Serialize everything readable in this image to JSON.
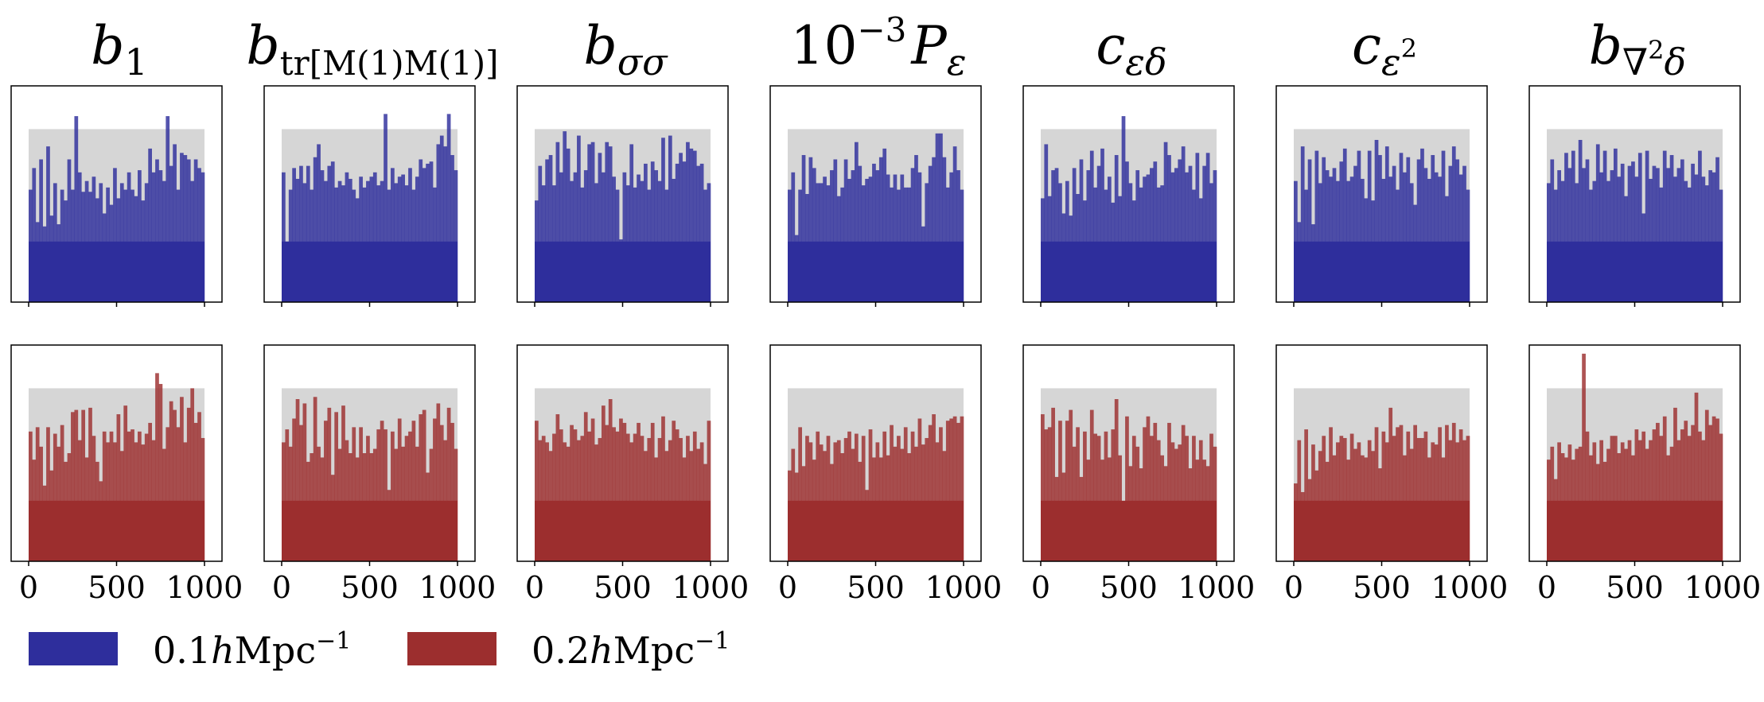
{
  "chart_data": {
    "type": "bar",
    "description_rows": [
      "0.1hMpc-1",
      "0.2hMpc-1"
    ],
    "xlim": [
      0,
      1000
    ],
    "xticks": [
      "0",
      "500",
      "1000"
    ],
    "n_bins": 50,
    "background_band": {
      "color": "#d6d6d6"
    },
    "colors": {
      "series_0.1": "#2e2e9c",
      "series_0.2": "#9c2e2e"
    },
    "panels": [
      {
        "title_parts": [
          "b",
          "1"
        ],
        "title": "b_1",
        "series": [
          {
            "name": "0.1hMpc-1",
            "base": 0.28,
            "values": [
              0.52,
              0.62,
              0.37,
              0.66,
              0.35,
              0.72,
              0.4,
              0.55,
              0.36,
              0.52,
              0.47,
              0.66,
              0.52,
              0.86,
              0.6,
              0.51,
              0.56,
              0.51,
              0.58,
              0.48,
              0.55,
              0.41,
              0.53,
              0.45,
              0.62,
              0.48,
              0.55,
              0.52,
              0.6,
              0.52,
              0.49,
              0.61,
              0.47,
              0.55,
              0.71,
              0.6,
              0.66,
              0.61,
              0.56,
              0.86,
              0.63,
              0.73,
              0.52,
              0.69,
              0.68,
              0.66,
              0.56,
              0.66,
              0.62,
              0.6
            ]
          },
          {
            "name": "0.2hMpc-1",
            "base": 0.28,
            "values": [
              0.6,
              0.47,
              0.62,
              0.53,
              0.35,
              0.62,
              0.42,
              0.59,
              0.53,
              0.63,
              0.46,
              0.5,
              0.69,
              0.7,
              0.56,
              0.7,
              0.48,
              0.71,
              0.58,
              0.46,
              0.37,
              0.6,
              0.55,
              0.6,
              0.55,
              0.68,
              0.51,
              0.72,
              0.6,
              0.61,
              0.55,
              0.6,
              0.54,
              0.59,
              0.64,
              0.56,
              0.87,
              0.82,
              0.52,
              0.62,
              0.74,
              0.7,
              0.62,
              0.76,
              0.55,
              0.71,
              0.8,
              0.64,
              0.69,
              0.57
            ]
          }
        ]
      },
      {
        "title_parts": [
          "b",
          "tr[M(1)M(1)]"
        ],
        "title": "b_tr[M(1)M(1)]",
        "series": [
          {
            "name": "0.1hMpc-1",
            "base": 0.28,
            "values": [
              0.6,
              0.28,
              0.52,
              0.62,
              0.57,
              0.63,
              0.55,
              0.63,
              0.52,
              0.67,
              0.73,
              0.61,
              0.56,
              0.63,
              0.65,
              0.53,
              0.56,
              0.54,
              0.6,
              0.57,
              0.52,
              0.48,
              0.58,
              0.53,
              0.56,
              0.58,
              0.6,
              0.54,
              0.56,
              0.87,
              0.52,
              0.62,
              0.55,
              0.58,
              0.59,
              0.54,
              0.62,
              0.52,
              0.58,
              0.66,
              0.62,
              0.64,
              0.65,
              0.53,
              0.73,
              0.77,
              0.72,
              0.87,
              0.68,
              0.61
            ]
          },
          {
            "name": "0.2hMpc-1",
            "base": 0.28,
            "values": [
              0.55,
              0.61,
              0.53,
              0.66,
              0.75,
              0.63,
              0.73,
              0.46,
              0.5,
              0.76,
              0.53,
              0.48,
              0.65,
              0.71,
              0.4,
              0.69,
              0.52,
              0.72,
              0.56,
              0.5,
              0.62,
              0.48,
              0.62,
              0.5,
              0.58,
              0.5,
              0.52,
              0.61,
              0.65,
              0.61,
              0.33,
              0.6,
              0.52,
              0.66,
              0.53,
              0.58,
              0.6,
              0.65,
              0.53,
              0.68,
              0.7,
              0.41,
              0.52,
              0.66,
              0.73,
              0.63,
              0.56,
              0.71,
              0.64,
              0.52
            ]
          }
        ]
      },
      {
        "title_parts": [
          "b",
          "σσ"
        ],
        "title": "b_σσ",
        "series": [
          {
            "name": "0.1hMpc-1",
            "base": 0.28,
            "values": [
              0.47,
              0.63,
              0.54,
              0.66,
              0.68,
              0.54,
              0.74,
              0.6,
              0.79,
              0.71,
              0.56,
              0.6,
              0.77,
              0.53,
              0.61,
              0.73,
              0.74,
              0.55,
              0.69,
              0.6,
              0.74,
              0.72,
              0.58,
              0.52,
              0.29,
              0.6,
              0.54,
              0.73,
              0.53,
              0.59,
              0.56,
              0.64,
              0.52,
              0.65,
              0.61,
              0.56,
              0.76,
              0.52,
              0.77,
              0.57,
              0.64,
              0.69,
              0.65,
              0.74,
              0.71,
              0.7,
              0.63,
              0.64,
              0.52,
              0.55
            ]
          },
          {
            "name": "0.2hMpc-1",
            "base": 0.28,
            "values": [
              0.65,
              0.56,
              0.58,
              0.55,
              0.51,
              0.59,
              0.68,
              0.61,
              0.55,
              0.53,
              0.63,
              0.61,
              0.56,
              0.58,
              0.69,
              0.6,
              0.66,
              0.54,
              0.57,
              0.72,
              0.63,
              0.75,
              0.62,
              0.6,
              0.66,
              0.64,
              0.59,
              0.55,
              0.59,
              0.64,
              0.58,
              0.51,
              0.57,
              0.64,
              0.48,
              0.57,
              0.67,
              0.51,
              0.56,
              0.65,
              0.61,
              0.57,
              0.48,
              0.58,
              0.51,
              0.6,
              0.52,
              0.55,
              0.45,
              0.65
            ]
          }
        ]
      },
      {
        "title_parts": [
          "10",
          "−3",
          "P",
          "ε"
        ],
        "title": "10^-3 P_ε",
        "series": [
          {
            "name": "0.1hMpc-1",
            "base": 0.28,
            "values": [
              0.52,
              0.6,
              0.31,
              0.52,
              0.68,
              0.5,
              0.67,
              0.62,
              0.55,
              0.55,
              0.58,
              0.54,
              0.61,
              0.66,
              0.49,
              0.53,
              0.66,
              0.57,
              0.61,
              0.74,
              0.63,
              0.54,
              0.57,
              0.58,
              0.64,
              0.61,
              0.67,
              0.71,
              0.59,
              0.53,
              0.59,
              0.52,
              0.59,
              0.53,
              0.53,
              0.62,
              0.68,
              0.6,
              0.35,
              0.55,
              0.63,
              0.67,
              0.78,
              0.78,
              0.67,
              0.53,
              0.6,
              0.72,
              0.61,
              0.52
            ]
          },
          {
            "name": "0.2hMpc-1",
            "base": 0.28,
            "values": [
              0.42,
              0.52,
              0.41,
              0.62,
              0.44,
              0.58,
              0.55,
              0.47,
              0.6,
              0.54,
              0.51,
              0.58,
              0.45,
              0.55,
              0.56,
              0.5,
              0.57,
              0.6,
              0.52,
              0.59,
              0.46,
              0.58,
              0.33,
              0.61,
              0.48,
              0.55,
              0.48,
              0.6,
              0.49,
              0.63,
              0.53,
              0.58,
              0.52,
              0.62,
              0.5,
              0.6,
              0.53,
              0.66,
              0.54,
              0.57,
              0.63,
              0.68,
              0.55,
              0.62,
              0.51,
              0.65,
              0.66,
              0.67,
              0.64,
              0.67
            ]
          }
        ]
      },
      {
        "title_parts": [
          "c",
          "εδ"
        ],
        "title": "c_εδ",
        "series": [
          {
            "name": "0.1hMpc-1",
            "base": 0.28,
            "values": [
              0.48,
              0.73,
              0.49,
              0.61,
              0.62,
              0.55,
              0.41,
              0.56,
              0.4,
              0.62,
              0.5,
              0.66,
              0.47,
              0.61,
              0.7,
              0.53,
              0.63,
              0.71,
              0.52,
              0.58,
              0.46,
              0.68,
              0.49,
              0.86,
              0.65,
              0.55,
              0.47,
              0.61,
              0.53,
              0.58,
              0.59,
              0.62,
              0.65,
              0.53,
              0.54,
              0.74,
              0.68,
              0.6,
              0.62,
              0.66,
              0.72,
              0.6,
              0.63,
              0.52,
              0.69,
              0.48,
              0.63,
              0.69,
              0.55,
              0.61
            ]
          },
          {
            "name": "0.2hMpc-1",
            "base": 0.28,
            "values": [
              0.68,
              0.61,
              0.62,
              0.71,
              0.39,
              0.65,
              0.41,
              0.65,
              0.7,
              0.53,
              0.62,
              0.39,
              0.6,
              0.47,
              0.7,
              0.59,
              0.58,
              0.47,
              0.6,
              0.48,
              0.61,
              0.75,
              0.49,
              0.27,
              0.67,
              0.44,
              0.58,
              0.53,
              0.43,
              0.62,
              0.67,
              0.58,
              0.64,
              0.56,
              0.49,
              0.44,
              0.64,
              0.55,
              0.52,
              0.54,
              0.63,
              0.58,
              0.43,
              0.58,
              0.47,
              0.56,
              0.47,
              0.44,
              0.59,
              0.53
            ]
          }
        ]
      },
      {
        "title_parts": [
          "c",
          "ε",
          "2"
        ],
        "title": "c_ε^2",
        "series": [
          {
            "name": "0.1hMpc-1",
            "base": 0.28,
            "values": [
              0.56,
              0.37,
              0.72,
              0.52,
              0.66,
              0.36,
              0.7,
              0.55,
              0.67,
              0.61,
              0.58,
              0.62,
              0.56,
              0.65,
              0.71,
              0.56,
              0.58,
              0.63,
              0.7,
              0.57,
              0.48,
              0.7,
              0.47,
              0.75,
              0.68,
              0.57,
              0.72,
              0.58,
              0.63,
              0.52,
              0.69,
              0.6,
              0.67,
              0.55,
              0.45,
              0.66,
              0.71,
              0.62,
              0.57,
              0.68,
              0.6,
              0.58,
              0.7,
              0.49,
              0.63,
              0.72,
              0.66,
              0.59,
              0.63,
              0.52
            ]
          },
          {
            "name": "0.2hMpc-1",
            "base": 0.28,
            "values": [
              0.36,
              0.56,
              0.32,
              0.61,
              0.38,
              0.54,
              0.42,
              0.51,
              0.58,
              0.46,
              0.62,
              0.49,
              0.55,
              0.58,
              0.57,
              0.47,
              0.59,
              0.52,
              0.55,
              0.49,
              0.48,
              0.56,
              0.51,
              0.62,
              0.43,
              0.6,
              0.55,
              0.71,
              0.58,
              0.62,
              0.63,
              0.49,
              0.6,
              0.52,
              0.63,
              0.57,
              0.57,
              0.6,
              0.48,
              0.55,
              0.54,
              0.62,
              0.48,
              0.63,
              0.56,
              0.64,
              0.55,
              0.61,
              0.56,
              0.58
            ]
          }
        ]
      },
      {
        "title_parts": [
          "b",
          "∇",
          "2",
          "δ"
        ],
        "title": "b_∇²δ",
        "series": [
          {
            "name": "0.1hMpc-1",
            "base": 0.28,
            "values": [
              0.55,
              0.66,
              0.52,
              0.61,
              0.56,
              0.69,
              0.62,
              0.7,
              0.55,
              0.75,
              0.62,
              0.66,
              0.52,
              0.56,
              0.73,
              0.6,
              0.7,
              0.56,
              0.61,
              0.71,
              0.58,
              0.64,
              0.49,
              0.63,
              0.65,
              0.58,
              0.69,
              0.41,
              0.7,
              0.57,
              0.63,
              0.62,
              0.53,
              0.7,
              0.62,
              0.68,
              0.58,
              0.62,
              0.66,
              0.56,
              0.53,
              0.64,
              0.59,
              0.7,
              0.58,
              0.54,
              0.61,
              0.6,
              0.67,
              0.52
            ]
          },
          {
            "name": "0.2hMpc-1",
            "base": 0.28,
            "values": [
              0.47,
              0.53,
              0.38,
              0.55,
              0.5,
              0.48,
              0.54,
              0.47,
              0.52,
              0.53,
              0.96,
              0.6,
              0.49,
              0.55,
              0.45,
              0.56,
              0.46,
              0.52,
              0.58,
              0.58,
              0.5,
              0.55,
              0.52,
              0.56,
              0.49,
              0.61,
              0.56,
              0.6,
              0.52,
              0.56,
              0.61,
              0.64,
              0.58,
              0.67,
              0.49,
              0.53,
              0.71,
              0.56,
              0.61,
              0.65,
              0.58,
              0.63,
              0.78,
              0.6,
              0.56,
              0.7,
              0.63,
              0.67,
              0.66,
              0.59
            ]
          }
        ]
      }
    ],
    "legend": [
      {
        "label_parts": [
          "0.1",
          "h",
          "Mpc",
          "−1"
        ],
        "label": "0.1hMpc−1",
        "color": "#2e2e9c"
      },
      {
        "label_parts": [
          "0.2",
          "h",
          "Mpc",
          "−1"
        ],
        "label": "0.2hMpc−1",
        "color": "#9c2e2e"
      }
    ]
  }
}
